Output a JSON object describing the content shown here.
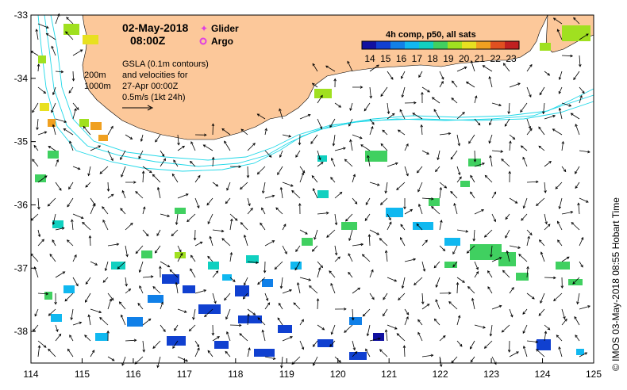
{
  "title": {
    "date": "02-May-2018",
    "time": "08:00Z"
  },
  "legend": {
    "glider_label": "Glider",
    "argo_label": "Argo",
    "glider_color": "#e040e0",
    "argo_color": "#e040e0"
  },
  "depth_labels": [
    "200m",
    "1000m"
  ],
  "gsla_note": [
    "GSLA (0.1m contours)",
    "and velocities for",
    "27-Apr 00:00Z",
    "0.5m/s (1kt 24h)"
  ],
  "colorbar": {
    "title": "4h comp, p50, all sats",
    "ticks": [
      "14",
      "15",
      "16",
      "17",
      "18",
      "19",
      "20",
      "21",
      "22",
      "23"
    ],
    "colors": [
      "#1010a0",
      "#1040d0",
      "#1080e8",
      "#10b8f0",
      "#10d0c0",
      "#40d060",
      "#a0e020",
      "#e8e020",
      "#f0a020",
      "#e05020",
      "#c02020"
    ]
  },
  "axes": {
    "x_ticks": [
      "114",
      "115",
      "116",
      "117",
      "118",
      "119",
      "120",
      "121",
      "122",
      "123",
      "124",
      "125"
    ],
    "y_ticks": [
      "-33",
      "-34",
      "-35",
      "-36",
      "-37",
      "-38"
    ],
    "xlim": [
      114,
      125
    ],
    "ylim": [
      -38.5,
      -33
    ]
  },
  "credit": "© IMOS 03-May-2018 08:55 Hobart Time",
  "colors": {
    "land": "#fcc89a",
    "contour": "#20d8e8",
    "arrow": "#000000"
  }
}
